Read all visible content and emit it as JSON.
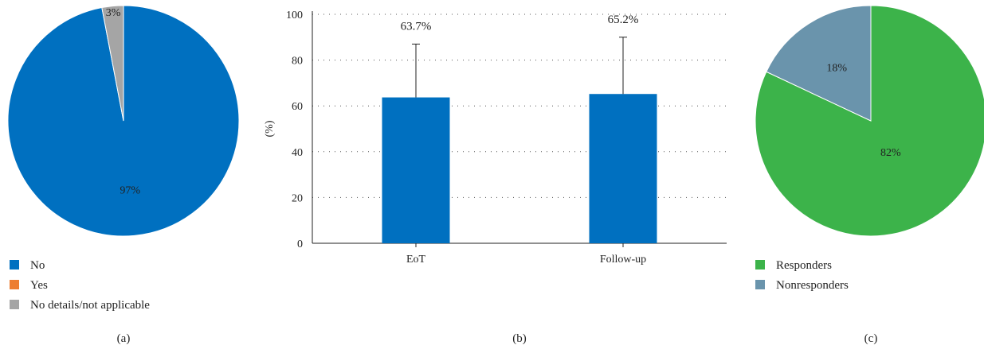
{
  "chart_data": [
    {
      "type": "pie",
      "panel_label": "(a)",
      "slices": [
        {
          "name": "No",
          "value": 97,
          "label": "97%",
          "color": "#0070c0"
        },
        {
          "name": "Yes",
          "value": 0,
          "label": "",
          "color": "#ed7d31"
        },
        {
          "name": "No details/not applicable",
          "value": 3,
          "label": "3%",
          "color": "#a5a5a5"
        }
      ],
      "legend": [
        "No",
        "Yes",
        "No details/not applicable"
      ],
      "legend_placement": "bottom-left"
    },
    {
      "type": "bar",
      "panel_label": "(b)",
      "categories": [
        "EoT",
        "Follow-up"
      ],
      "values": [
        63.7,
        65.2
      ],
      "value_labels": [
        "63.7%",
        "65.2%"
      ],
      "error_upper": [
        87,
        90
      ],
      "ylabel": "(%)",
      "ylim": [
        0,
        100
      ],
      "yticks": [
        "0",
        "20",
        "40",
        "60",
        "80",
        "100"
      ],
      "grid": true,
      "bar_color": "#0070c0"
    },
    {
      "type": "pie",
      "panel_label": "(c)",
      "slices": [
        {
          "name": "Responders",
          "value": 82,
          "label": "82%",
          "color": "#3cb34a"
        },
        {
          "name": "Nonresponders",
          "value": 18,
          "label": "18%",
          "color": "#6a94ac"
        }
      ],
      "legend": [
        "Responders",
        "Nonresponders"
      ],
      "legend_placement": "bottom-left"
    }
  ]
}
